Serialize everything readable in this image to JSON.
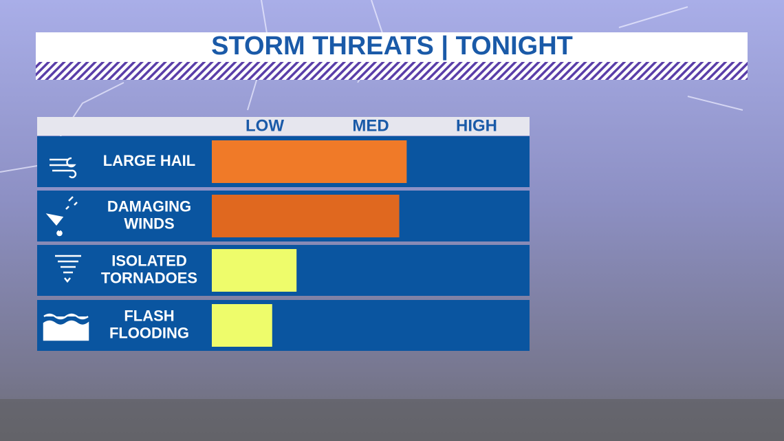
{
  "chart_data": {
    "type": "bar",
    "orientation": "horizontal",
    "title": "STORM THREATS | TONIGHT",
    "categories": [
      [
        "LARGE HAIL"
      ],
      [
        "DAMAGING",
        "WINDS"
      ],
      [
        "ISOLATED",
        "TORNADOES"
      ],
      [
        "FLASH",
        "FLOODING"
      ]
    ],
    "values": [
      1.84,
      1.77,
      0.8,
      0.57
    ],
    "colors": [
      "#f07a28",
      "#e0681f",
      "#eefc6b",
      "#eefc6b"
    ],
    "xlim": [
      0,
      3
    ],
    "xticks": [
      {
        "value": 0.5,
        "label": "LOW"
      },
      {
        "value": 1.5,
        "label": "MED"
      },
      {
        "value": 2.5,
        "label": "HIGH"
      }
    ]
  }
}
